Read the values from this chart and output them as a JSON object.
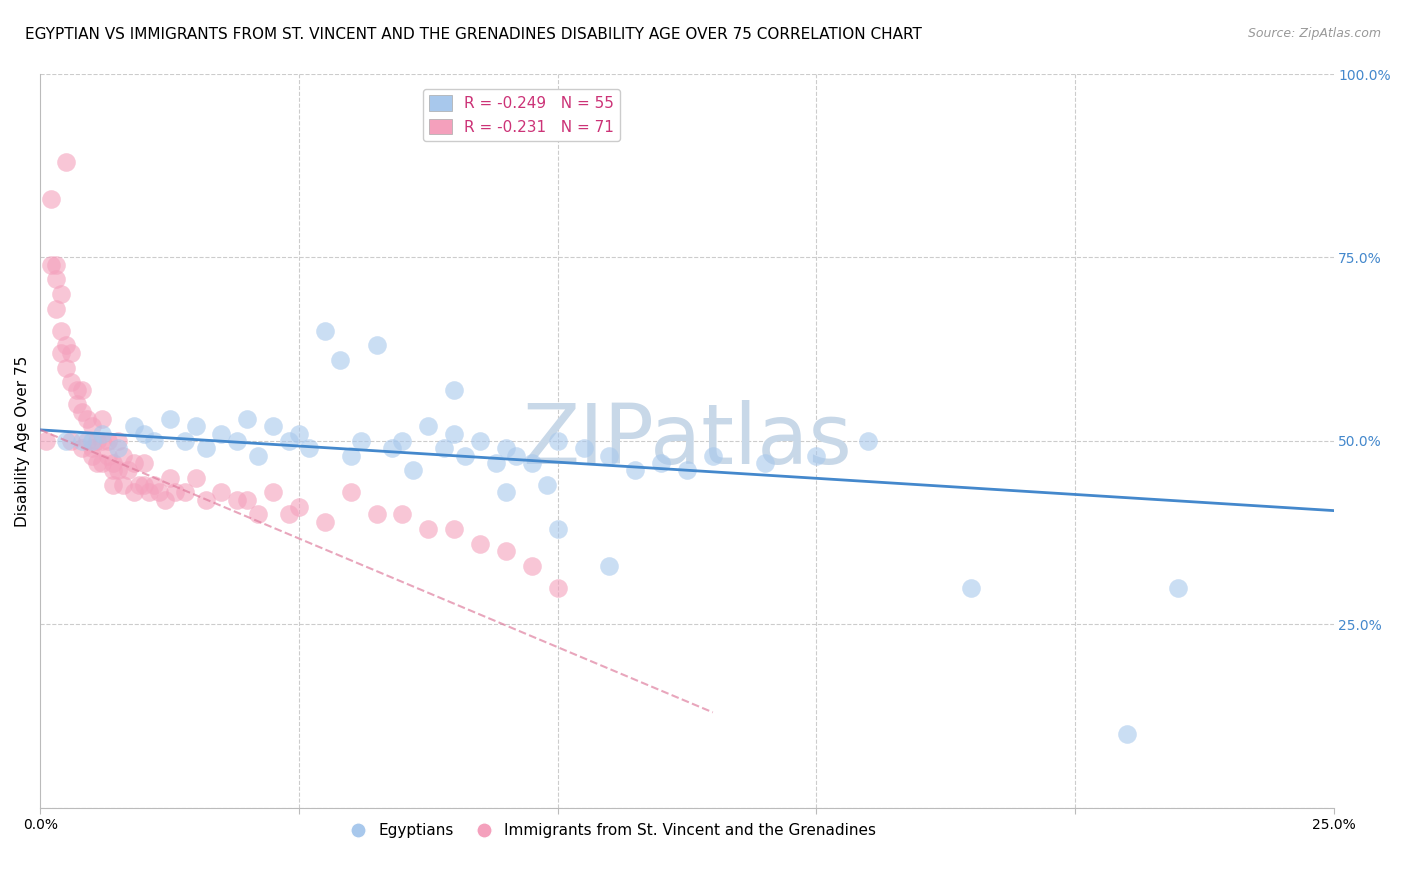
{
  "title": "EGYPTIAN VS IMMIGRANTS FROM ST. VINCENT AND THE GRENADINES DISABILITY AGE OVER 75 CORRELATION CHART",
  "source": "Source: ZipAtlas.com",
  "ylabel": "Disability Age Over 75",
  "xlim": [
    0.0,
    0.25
  ],
  "ylim": [
    0.0,
    1.0
  ],
  "blue_color": "#A8C8EC",
  "pink_color": "#F4A0BC",
  "blue_line_color": "#4488CC",
  "pink_line_color": "#DD7799",
  "grid_color": "#CCCCCC",
  "watermark_color": "#C8D8E8",
  "legend_blue_R": "-0.249",
  "legend_blue_N": "55",
  "legend_pink_R": "-0.231",
  "legend_pink_N": "71",
  "blue_scatter_x": [
    0.005,
    0.008,
    0.01,
    0.012,
    0.015,
    0.018,
    0.02,
    0.022,
    0.025,
    0.028,
    0.03,
    0.032,
    0.035,
    0.038,
    0.04,
    0.042,
    0.045,
    0.048,
    0.05,
    0.052,
    0.055,
    0.058,
    0.06,
    0.062,
    0.065,
    0.068,
    0.07,
    0.072,
    0.075,
    0.078,
    0.08,
    0.082,
    0.085,
    0.088,
    0.09,
    0.092,
    0.095,
    0.098,
    0.1,
    0.105,
    0.11,
    0.115,
    0.12,
    0.125,
    0.13,
    0.14,
    0.15,
    0.16,
    0.18,
    0.21,
    0.22,
    0.08,
    0.09,
    0.1,
    0.11
  ],
  "blue_scatter_y": [
    0.5,
    0.5,
    0.5,
    0.51,
    0.49,
    0.52,
    0.51,
    0.5,
    0.53,
    0.5,
    0.52,
    0.49,
    0.51,
    0.5,
    0.53,
    0.48,
    0.52,
    0.5,
    0.51,
    0.49,
    0.65,
    0.61,
    0.48,
    0.5,
    0.63,
    0.49,
    0.5,
    0.46,
    0.52,
    0.49,
    0.51,
    0.48,
    0.5,
    0.47,
    0.49,
    0.48,
    0.47,
    0.44,
    0.5,
    0.49,
    0.48,
    0.46,
    0.47,
    0.46,
    0.48,
    0.47,
    0.48,
    0.5,
    0.3,
    0.1,
    0.3,
    0.57,
    0.43,
    0.38,
    0.33
  ],
  "pink_scatter_x": [
    0.001,
    0.002,
    0.003,
    0.003,
    0.004,
    0.004,
    0.005,
    0.005,
    0.006,
    0.006,
    0.007,
    0.007,
    0.008,
    0.008,
    0.009,
    0.009,
    0.01,
    0.01,
    0.011,
    0.011,
    0.012,
    0.012,
    0.013,
    0.013,
    0.014,
    0.014,
    0.015,
    0.015,
    0.016,
    0.016,
    0.017,
    0.018,
    0.018,
    0.019,
    0.02,
    0.02,
    0.021,
    0.022,
    0.023,
    0.024,
    0.025,
    0.026,
    0.028,
    0.03,
    0.032,
    0.035,
    0.038,
    0.04,
    0.042,
    0.045,
    0.048,
    0.05,
    0.055,
    0.06,
    0.065,
    0.07,
    0.075,
    0.08,
    0.085,
    0.09,
    0.095,
    0.1,
    0.006,
    0.008,
    0.01,
    0.012,
    0.014,
    0.002,
    0.003,
    0.004,
    0.005
  ],
  "pink_scatter_y": [
    0.5,
    0.83,
    0.74,
    0.72,
    0.65,
    0.7,
    0.63,
    0.6,
    0.58,
    0.62,
    0.57,
    0.55,
    0.54,
    0.57,
    0.53,
    0.5,
    0.52,
    0.49,
    0.5,
    0.47,
    0.5,
    0.53,
    0.48,
    0.5,
    0.47,
    0.44,
    0.5,
    0.46,
    0.48,
    0.44,
    0.46,
    0.47,
    0.43,
    0.44,
    0.47,
    0.44,
    0.43,
    0.44,
    0.43,
    0.42,
    0.45,
    0.43,
    0.43,
    0.45,
    0.42,
    0.43,
    0.42,
    0.42,
    0.4,
    0.43,
    0.4,
    0.41,
    0.39,
    0.43,
    0.4,
    0.4,
    0.38,
    0.38,
    0.36,
    0.35,
    0.33,
    0.3,
    0.5,
    0.49,
    0.48,
    0.47,
    0.46,
    0.74,
    0.68,
    0.62,
    0.88
  ],
  "blue_trend_x": [
    0.0,
    0.25
  ],
  "blue_trend_y": [
    0.515,
    0.405
  ],
  "pink_trend_x": [
    0.0,
    0.13
  ],
  "pink_trend_y": [
    0.515,
    0.13
  ],
  "title_fontsize": 11,
  "axis_label_fontsize": 11,
  "tick_fontsize": 10,
  "legend_fontsize": 11,
  "watermark_fontsize": 60
}
